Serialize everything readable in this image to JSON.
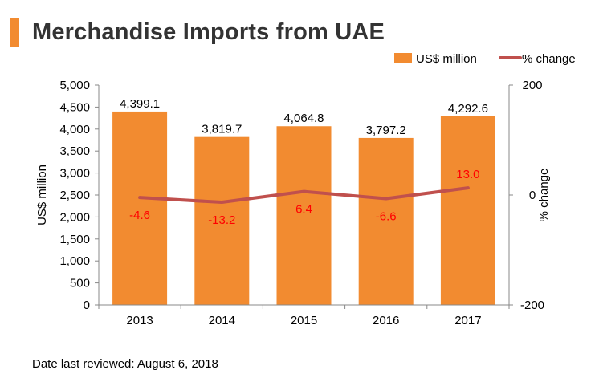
{
  "title": "Merchandise Imports from UAE",
  "footer": "Date last reviewed: August 6, 2018",
  "colors": {
    "accent": "#f28b30",
    "bar": "#f28b30",
    "line": "#c0504d",
    "line_label": "#ff0000"
  },
  "chart_data": {
    "type": "bar",
    "categories": [
      "2013",
      "2014",
      "2015",
      "2016",
      "2017"
    ],
    "series": [
      {
        "name": "US$ million",
        "type": "bar",
        "axis": "left",
        "values": [
          4399.1,
          3819.7,
          4064.8,
          3797.2,
          4292.6
        ],
        "labels": [
          "4,399.1",
          "3,819.7",
          "4,064.8",
          "3,797.2",
          "4,292.6"
        ]
      },
      {
        "name": "% change",
        "type": "line",
        "axis": "right",
        "values": [
          -4.6,
          -13.2,
          6.4,
          -6.6,
          13.0
        ],
        "labels": [
          "-4.6",
          "-13.2",
          "6.4",
          "-6.6",
          "13.0"
        ]
      }
    ],
    "ylabel": "US$ million",
    "y2label": "% change",
    "ylim": [
      0,
      5000
    ],
    "y2lim": [
      -200,
      200
    ],
    "yticks": [
      "0",
      "500",
      "1,000",
      "1,500",
      "2,000",
      "2,500",
      "3,000",
      "3,500",
      "4,000",
      "4,500",
      "5,000"
    ],
    "y2ticks": [
      "-200",
      "0",
      "200"
    ],
    "grid": false,
    "legend": "top-right"
  }
}
